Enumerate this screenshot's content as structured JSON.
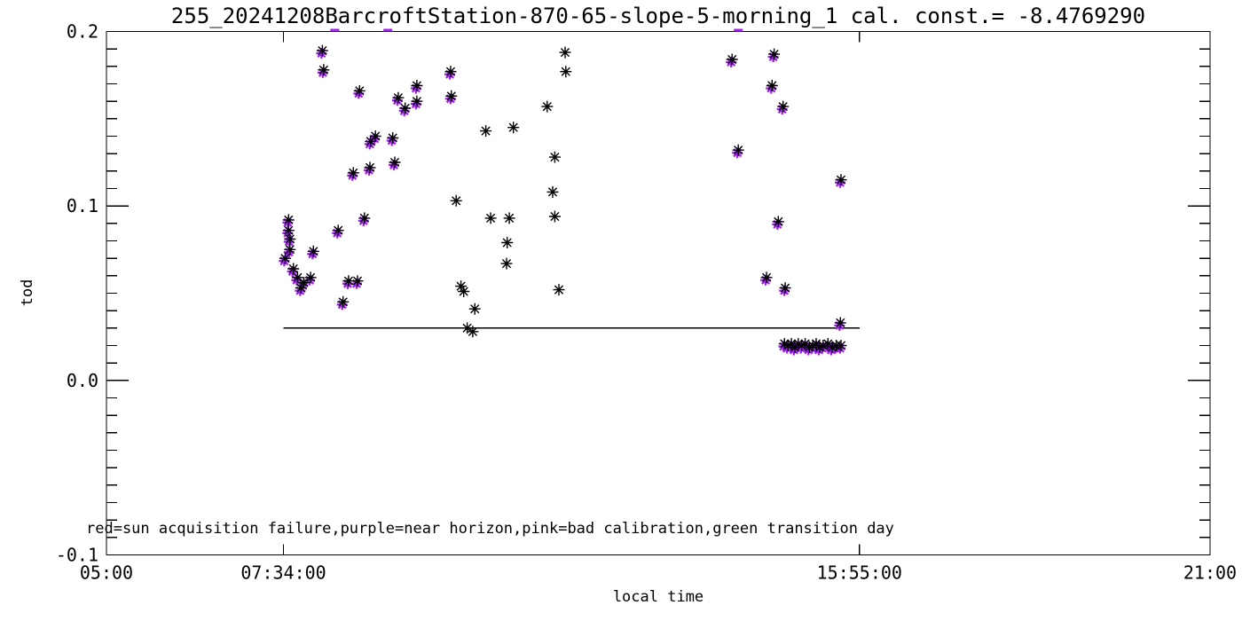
{
  "chart_data": {
    "type": "scatter",
    "title": "255_20241208BarcroftStation-870-65-slope-5-morning_1 cal. const.= -8.4769290",
    "calibration_constant": -8.476929,
    "xlabel": "local time",
    "ylabel": "tod",
    "annotation": "red=sun acquisition failure,purple=near horizon,pink=bad calibration,green transition day",
    "marker": "asterisk",
    "grid": false,
    "legend_position": "none",
    "colors": {
      "axis": "#000000",
      "black_series": "#000000",
      "purple_series": "#a020f0",
      "background": "#ffffff"
    },
    "x_axis": {
      "unit": "hours_local_time",
      "range_hours": [
        5.0,
        21.0
      ],
      "ticks": [
        {
          "hour": 5.0,
          "label": "05:00"
        },
        {
          "hour": 7.5667,
          "label": "07:34:00"
        },
        {
          "hour": 15.9167,
          "label": "15:55:00"
        },
        {
          "hour": 21.0,
          "label": "21:00"
        }
      ]
    },
    "y_axis": {
      "range": [
        -0.1,
        0.2
      ],
      "ticks": [
        {
          "value": 0.2,
          "label": "0.2"
        },
        {
          "value": 0.1,
          "label": "0.1"
        },
        {
          "value": 0.0,
          "label": "0.0"
        },
        {
          "value": -0.1,
          "label": "-0.1"
        }
      ],
      "minor_step": 0.01
    },
    "reference_line": {
      "tod": 0.03,
      "from_hour": 7.5667,
      "to_hour": 15.9167
    },
    "series": [
      {
        "name": "black_purple_pairs",
        "description": "tod points overplotted in purple (near horizon)",
        "marker": "asterisk",
        "colors": [
          "#000000",
          "#a020f0"
        ],
        "points": [
          [
            7.64,
            0.092
          ],
          [
            7.64,
            0.086
          ],
          [
            7.66,
            0.081
          ],
          [
            7.66,
            0.075
          ],
          [
            7.59,
            0.07
          ],
          [
            7.71,
            0.064
          ],
          [
            7.77,
            0.059
          ],
          [
            7.86,
            0.056
          ],
          [
            7.82,
            0.053
          ],
          [
            7.96,
            0.059
          ],
          [
            8.0,
            0.074
          ],
          [
            8.36,
            0.086
          ],
          [
            8.74,
            0.093
          ],
          [
            8.51,
            0.057
          ],
          [
            8.64,
            0.057
          ],
          [
            8.43,
            0.045
          ],
          [
            8.13,
            0.189
          ],
          [
            8.15,
            0.178
          ],
          [
            8.67,
            0.166
          ],
          [
            9.5,
            0.169
          ],
          [
            9.23,
            0.162
          ],
          [
            9.5,
            0.16
          ],
          [
            9.33,
            0.156
          ],
          [
            8.9,
            0.14
          ],
          [
            8.83,
            0.137
          ],
          [
            9.15,
            0.139
          ],
          [
            9.18,
            0.125
          ],
          [
            8.82,
            0.122
          ],
          [
            8.58,
            0.119
          ],
          [
            9.99,
            0.177
          ],
          [
            10.0,
            0.163
          ],
          [
            14.07,
            0.184
          ],
          [
            14.68,
            0.187
          ],
          [
            14.65,
            0.169
          ],
          [
            14.81,
            0.157
          ],
          [
            14.16,
            0.132
          ],
          [
            15.65,
            0.115
          ],
          [
            14.74,
            0.091
          ],
          [
            14.57,
            0.059
          ],
          [
            14.84,
            0.053
          ],
          [
            15.64,
            0.033
          ],
          [
            14.83,
            0.021
          ],
          [
            14.88,
            0.02
          ],
          [
            14.93,
            0.021
          ],
          [
            14.98,
            0.019
          ],
          [
            15.03,
            0.021
          ],
          [
            15.08,
            0.02
          ],
          [
            15.13,
            0.021
          ],
          [
            15.19,
            0.019
          ],
          [
            15.24,
            0.02
          ],
          [
            15.29,
            0.021
          ],
          [
            15.34,
            0.019
          ],
          [
            15.39,
            0.02
          ],
          [
            15.46,
            0.021
          ],
          [
            15.52,
            0.019
          ],
          [
            15.58,
            0.02
          ],
          [
            15.65,
            0.02
          ]
        ]
      },
      {
        "name": "black_only",
        "description": "tod points, good data (black only)",
        "marker": "asterisk",
        "colors": [
          "#000000"
        ],
        "points": [
          [
            11.65,
            0.188
          ],
          [
            11.66,
            0.177
          ],
          [
            11.39,
            0.157
          ],
          [
            10.5,
            0.143
          ],
          [
            10.9,
            0.145
          ],
          [
            11.5,
            0.128
          ],
          [
            11.47,
            0.108
          ],
          [
            10.07,
            0.103
          ],
          [
            10.57,
            0.093
          ],
          [
            10.84,
            0.093
          ],
          [
            11.5,
            0.094
          ],
          [
            10.81,
            0.079
          ],
          [
            10.8,
            0.067
          ],
          [
            10.14,
            0.054
          ],
          [
            10.18,
            0.051
          ],
          [
            11.56,
            0.052
          ],
          [
            10.34,
            0.041
          ],
          [
            10.23,
            0.03
          ],
          [
            10.31,
            0.028
          ]
        ]
      },
      {
        "name": "purple_clipped_top",
        "description": "purple points clipped at tod = 0.2 plot boundary",
        "marker": "asterisk",
        "colors": [
          "#a020f0"
        ],
        "points_hours": [
          8.31,
          9.08,
          14.16
        ],
        "tod": 0.2
      }
    ]
  }
}
